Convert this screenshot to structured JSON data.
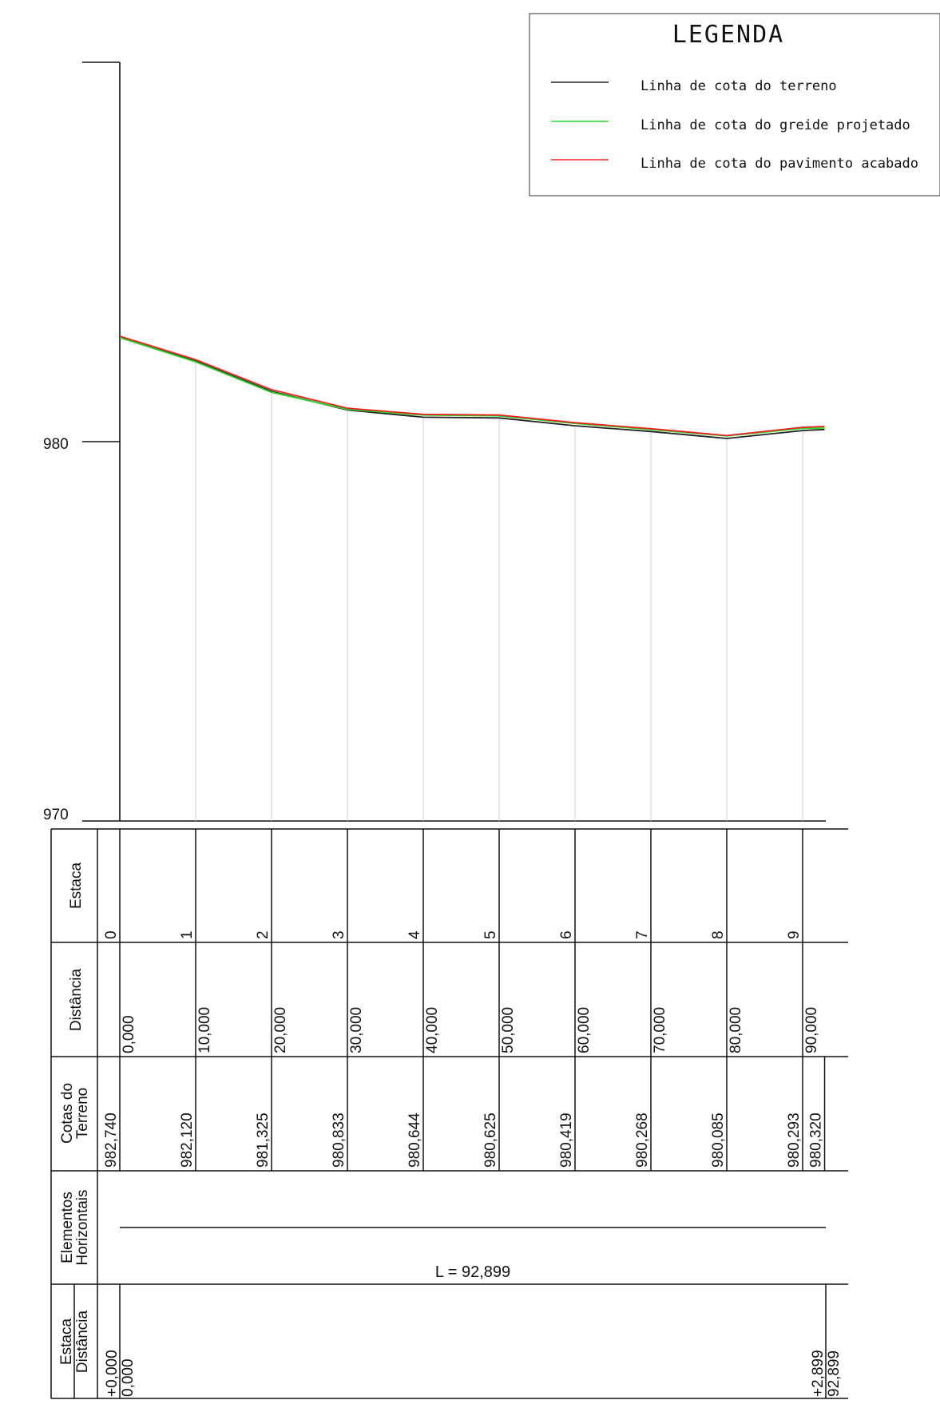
{
  "legend": {
    "title": "LEGENDA",
    "items": [
      {
        "label": "Linha de cota do terreno",
        "color": "#222222"
      },
      {
        "label": "Linha de cota do greide projetado",
        "color": "#22dd22"
      },
      {
        "label": "Linha de cota do pavimento acabado",
        "color": "#ee2222"
      }
    ]
  },
  "chart_data": {
    "type": "line",
    "ylim": [
      970,
      990
    ],
    "yticks": [
      "980",
      "970"
    ],
    "x": [
      0,
      10,
      20,
      30,
      40,
      50,
      60,
      70,
      80,
      90,
      92.899
    ],
    "series": [
      {
        "name": "Linha de cota do terreno",
        "color": "#222222",
        "values": [
          982.74,
          982.12,
          981.325,
          980.833,
          980.644,
          980.625,
          980.419,
          980.268,
          980.085,
          980.293,
          980.32
        ]
      },
      {
        "name": "Linha de cota do greide projetado",
        "color": "#22dd22",
        "values": [
          982.74,
          982.1,
          981.3,
          980.85,
          980.7,
          980.68,
          980.48,
          980.32,
          980.15,
          980.35,
          980.36
        ]
      },
      {
        "name": "Linha de cota do pavimento acabado",
        "color": "#ee2222",
        "values": [
          982.78,
          982.16,
          981.37,
          980.88,
          980.72,
          980.7,
          980.5,
          980.34,
          980.16,
          980.38,
          980.4
        ]
      }
    ]
  },
  "table": {
    "row_labels": {
      "estaca": "Estaca",
      "distancia": "Distância",
      "cotas_l1": "Cotas do",
      "cotas_l2": "Terreno",
      "elem_l1": "Elementos",
      "elem_l2": "Horizontais",
      "bottom_estaca": "Estaca",
      "bottom_distancia": "Distância"
    },
    "estacas": [
      "0",
      "1",
      "2",
      "3",
      "4",
      "5",
      "6",
      "7",
      "8",
      "9"
    ],
    "distancias": [
      "0,000",
      "10,000",
      "20,000",
      "30,000",
      "40,000",
      "50,000",
      "60,000",
      "70,000",
      "80,000",
      "90,000"
    ],
    "cotas": [
      "982,740",
      "982,120",
      "981,325",
      "980,833",
      "980,644",
      "980,625",
      "980,419",
      "980,268",
      "980,085",
      "980,293",
      "980,320"
    ],
    "elementos_label": "L = 92,899",
    "bottom": {
      "start_estaca": "+0,000",
      "start_distancia": "0,000",
      "end_estaca": "+2,899",
      "end_distancia": "92,899"
    }
  }
}
